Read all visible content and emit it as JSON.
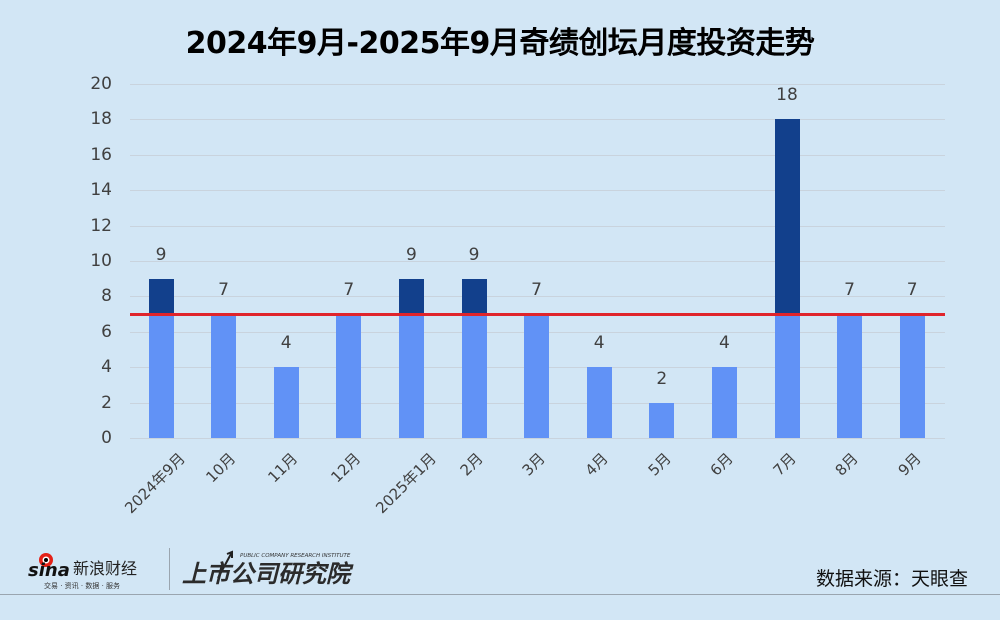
{
  "title": "2024年9月-2025年9月奇绩创坛月度投资走势",
  "chart_data": {
    "type": "bar",
    "title": "2024年9月-2025年9月奇绩创坛月度投资走势",
    "xlabel": "",
    "ylabel": "",
    "categories": [
      "2024年9月",
      "10月",
      "11月",
      "12月",
      "2025年1月",
      "2月",
      "3月",
      "4月",
      "5月",
      "6月",
      "7月",
      "8月",
      "9月"
    ],
    "values": [
      9,
      7,
      4,
      7,
      9,
      9,
      7,
      4,
      2,
      4,
      18,
      7,
      7
    ],
    "ylim": [
      0,
      20
    ],
    "yticks": [
      0,
      2,
      4,
      6,
      8,
      10,
      12,
      14,
      16,
      18,
      20
    ],
    "grid": true,
    "reference_line": {
      "value": 7,
      "color": "#e0242b"
    },
    "colors": {
      "below_or_at_reference": "#6192f6",
      "above_reference": "#12408c"
    },
    "data_labels": true,
    "legend": "none"
  },
  "footer": {
    "brand_sina": "sina",
    "brand_sina_cn": "新浪财经",
    "brand_sina_tagline": "交易 · 资讯 · 数据 · 服务",
    "institute_en": "PUBLIC COMPANY RESEARCH INSTITUTE",
    "institute_cn": "上市公司研究院",
    "source": "数据来源：天眼查"
  }
}
